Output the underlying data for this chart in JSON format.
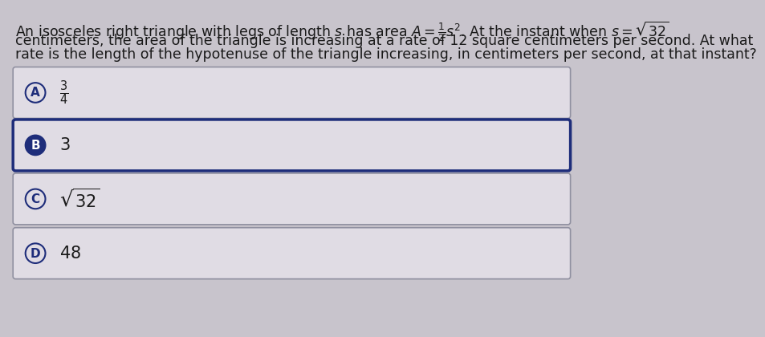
{
  "background_color": "#c8c4cc",
  "box_color": "#e0dce4",
  "question_line1": "An isosceles right triangle with legs of length $s$ has area $A = \\frac{1}{2}s^2$. At the instant when $s = \\sqrt{32}$",
  "question_line2": "centimeters, the area of the triangle is increasing at a rate of 12 square centimeters per second. At what",
  "question_line3": "rate is the length of the hypotenuse of the triangle increasing, in centimeters per second, at that instant?",
  "options": [
    {
      "label": "A",
      "text": "$\\frac{3}{4}$",
      "selected": false
    },
    {
      "label": "B",
      "text": "$3$",
      "selected": true
    },
    {
      "label": "C",
      "text": "$\\sqrt{32}$",
      "selected": false
    },
    {
      "label": "D",
      "text": "$48$",
      "selected": false
    }
  ],
  "selected_border_color": "#1e2d7a",
  "unselected_border_color": "#9090a0",
  "label_circle_selected_bg": "#1e2d7a",
  "label_circle_unselected_bg": "#e0dce4",
  "label_circle_selected_text": "#ffffff",
  "label_circle_unselected_text": "#1e2d7a",
  "text_color": "#1a1a1a",
  "question_fontsize": 12.5,
  "option_fontsize": 15,
  "label_fontsize": 11
}
